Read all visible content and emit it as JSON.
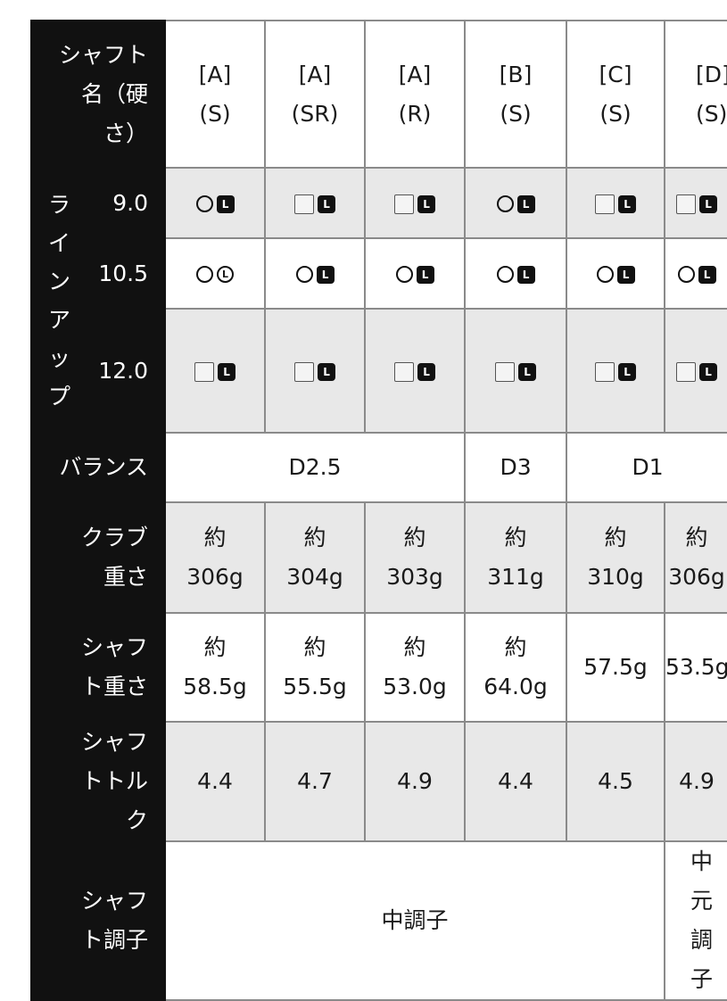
{
  "labels": {
    "shaft_name": "シャフト名（硬さ）",
    "lineup": "ラインアップ",
    "lofts": [
      "9.0",
      "10.5",
      "12.0"
    ],
    "balance": "バランス",
    "club_weight": "クラブ重さ",
    "shaft_weight": "シャフト重さ",
    "shaft_torque": "シャフトトルク",
    "shaft_flex": "シャフト調子"
  },
  "columns": [
    {
      "name": "[A]",
      "flex": "(S)"
    },
    {
      "name": "[A]",
      "flex": "(SR)"
    },
    {
      "name": "[A]",
      "flex": "(R)"
    },
    {
      "name": "[B]",
      "flex": "(S)"
    },
    {
      "name": "[C]",
      "flex": "(S)"
    },
    {
      "name": "[D]",
      "flex": "(S)"
    }
  ],
  "lineup": [
    [
      [
        "circle",
        "L-filled"
      ],
      [
        "square",
        "L-filled"
      ],
      [
        "square",
        "L-filled"
      ],
      [
        "circle",
        "L-filled"
      ],
      [
        "square",
        "L-filled"
      ],
      [
        "square",
        "L-filled"
      ]
    ],
    [
      [
        "circle",
        "L-circle"
      ],
      [
        "circle",
        "L-filled"
      ],
      [
        "circle",
        "L-filled"
      ],
      [
        "circle",
        "L-filled"
      ],
      [
        "circle",
        "L-filled"
      ],
      [
        "circle",
        "L-filled"
      ]
    ],
    [
      [
        "square",
        "L-filled"
      ],
      [
        "square",
        "L-filled"
      ],
      [
        "square",
        "L-filled"
      ],
      [
        "square",
        "L-filled"
      ],
      [
        "square",
        "L-filled"
      ],
      [
        "square",
        "L-filled"
      ]
    ]
  ],
  "balance": [
    "D2.5",
    "D3",
    "D1"
  ],
  "club_weight": [
    {
      "prefix": "約",
      "value": "306g"
    },
    {
      "prefix": "約",
      "value": "304g"
    },
    {
      "prefix": "約",
      "value": "303g"
    },
    {
      "prefix": "約",
      "value": "311g"
    },
    {
      "prefix": "約",
      "value": "310g"
    },
    {
      "prefix": "約",
      "value": "306g"
    }
  ],
  "shaft_weight": [
    {
      "prefix": "約",
      "value": "58.5g"
    },
    {
      "prefix": "約",
      "value": "55.5g"
    },
    {
      "prefix": "約",
      "value": "53.0g"
    },
    {
      "prefix": "約",
      "value": "64.0g"
    },
    {
      "prefix": "",
      "value": "57.5g"
    },
    {
      "prefix": "",
      "value": "53.5g"
    }
  ],
  "torque": [
    "4.4",
    "4.7",
    "4.9",
    "4.4",
    "4.5",
    "4.9"
  ],
  "flex": [
    "中調子",
    "中元調子"
  ]
}
